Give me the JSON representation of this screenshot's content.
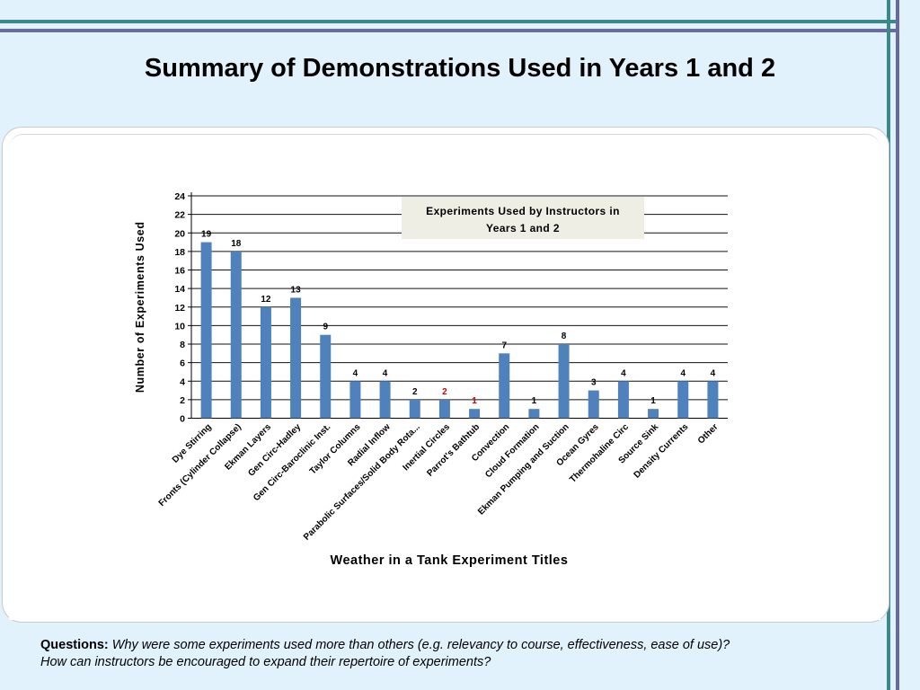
{
  "slide": {
    "title": "Summary of Demonstrations Used in Years 1 and 2",
    "questions_label": "Questions:",
    "questions_line1": "Why were some experiments used more than others (e.g. relevancy to course, effectiveness, ease of use)?",
    "questions_line2": "How can instructors be encouraged to expand their repertoire of experiments?"
  },
  "colors": {
    "background": "#e2f2fc",
    "accent_teal": "#3a8a8c",
    "accent_purple": "#6a6aa2",
    "bar": "#4f81bd",
    "label_highlight": "#cc0000",
    "legend_box": "#eeeee4"
  },
  "chart_data": {
    "type": "bar",
    "title": "Experiments Used by Instructors in Years 1 and 2",
    "xlabel": "Weather in a Tank Experiment Titles",
    "ylabel": "Number of Experiments Used",
    "ylim": [
      0,
      24
    ],
    "yticks": [
      0,
      2,
      4,
      6,
      8,
      10,
      12,
      14,
      16,
      18,
      20,
      22,
      24
    ],
    "grid": true,
    "categories": [
      "Dye Stirring",
      "Fronts (Cylinder Collapse)",
      "Ekman Layers",
      "Gen Circ-Hadley",
      "Gen Circ-Baroclinic Inst.",
      "Taylor Columns",
      "Radial Inflow",
      "Parabolic Surfaces/Solid Body Rota...",
      "Inertial Circles",
      "Parrot's Bathtub",
      "Convection",
      "Cloud Formation",
      "Ekman Pumping and Suction",
      "Ocean Gyres",
      "Thermohaline Circ",
      "Source Sink",
      "Density Currents",
      "Other"
    ],
    "values": [
      19,
      18,
      12,
      13,
      9,
      4,
      4,
      2,
      2,
      1,
      7,
      1,
      8,
      3,
      4,
      1,
      4,
      4
    ],
    "value_labels": [
      "19",
      "18",
      "12",
      "13",
      "9",
      "4",
      "4",
      "2",
      "2",
      "1",
      "7",
      "1",
      "8",
      "3",
      "4",
      "1",
      "4",
      "4"
    ],
    "highlighted_label_indices": [
      8,
      9
    ]
  }
}
